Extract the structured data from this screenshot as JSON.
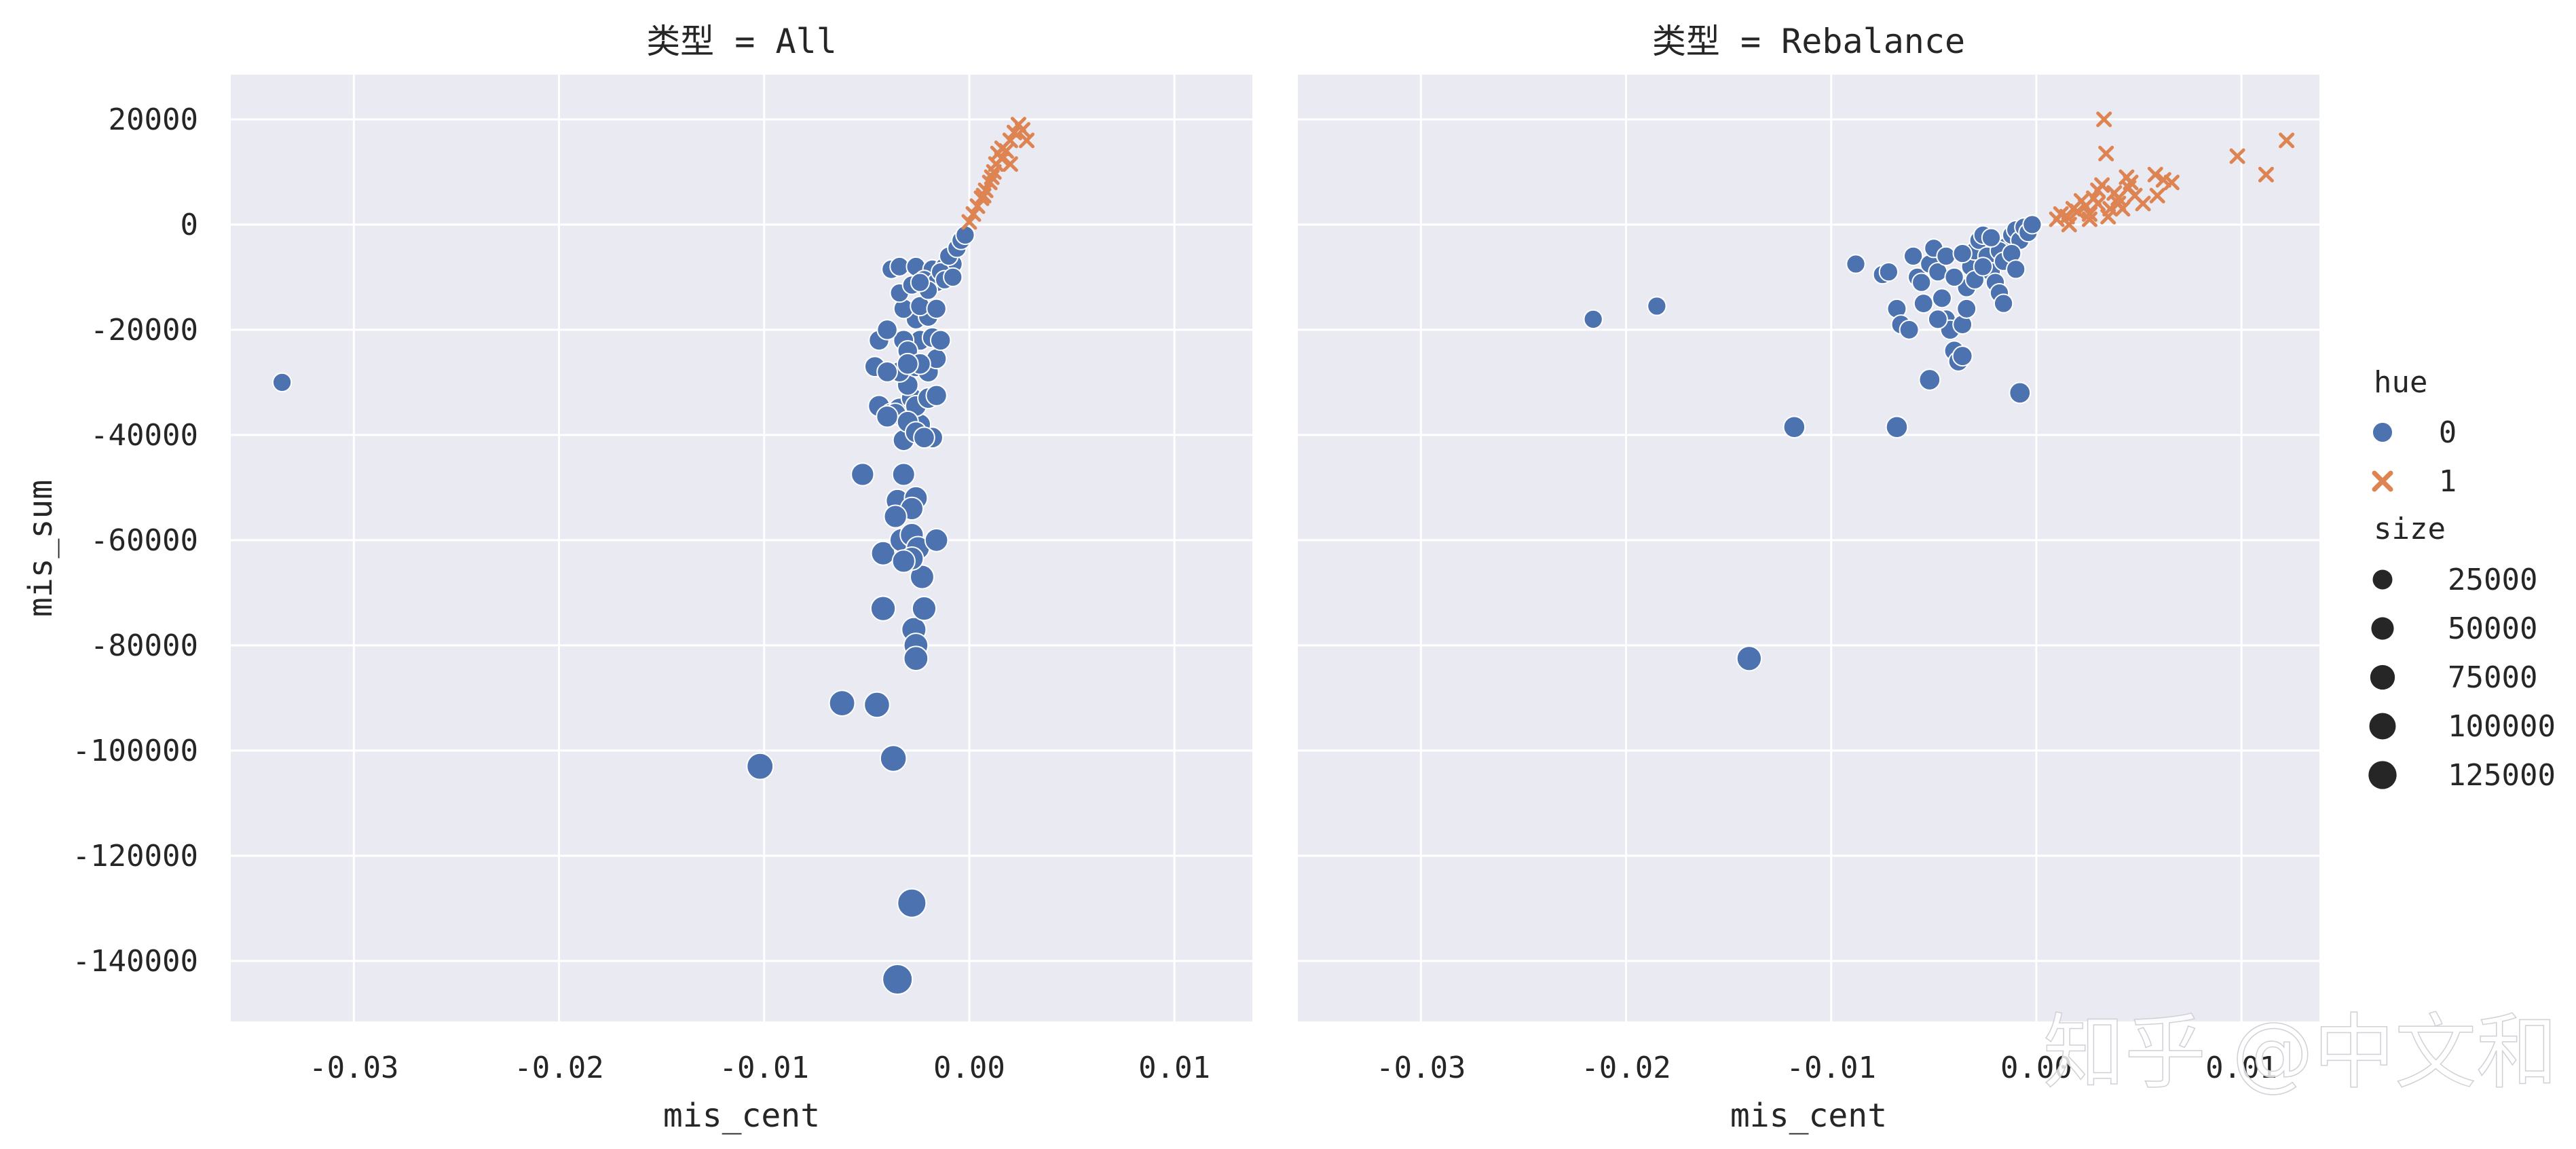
{
  "watermark": "知乎 @中文和",
  "colors": {
    "background": "#EAEAF2",
    "grid": "#FFFFFF",
    "hue0": "#4C72B0",
    "hue1": "#DD8452"
  },
  "chart_data": {
    "type": "scatter",
    "shared_axes": {
      "xlabel": "mis_cent",
      "ylabel": "mis_sum",
      "xlim": [
        -0.036,
        0.0138
      ],
      "ylim": [
        -151500,
        28500
      ],
      "xticks": [
        -0.03,
        -0.02,
        -0.01,
        0.0,
        0.01
      ],
      "xtick_labels": [
        "-0.03",
        "-0.02",
        "-0.01",
        "0.00",
        "0.01"
      ],
      "yticks": [
        20000,
        0,
        -20000,
        -40000,
        -60000,
        -80000,
        -100000,
        -120000,
        -140000
      ],
      "ytick_labels": [
        "20000",
        "0",
        "-20000",
        "-40000",
        "-60000",
        "-80000",
        "-100000",
        "-120000",
        "-140000"
      ],
      "grid": true
    },
    "facets": [
      {
        "title": "类型 = All",
        "hue0_points": [
          [
            -0.0335,
            -30000,
            12000
          ],
          [
            -0.0102,
            -103000,
            80000
          ],
          [
            -0.0062,
            -91000,
            72000
          ],
          [
            -0.0045,
            -91300,
            70000
          ],
          [
            -0.0037,
            -101500,
            78000
          ],
          [
            -0.0028,
            -129000,
            110000
          ],
          [
            -0.0035,
            -143500,
            130000
          ],
          [
            -0.0042,
            -73000,
            60000
          ],
          [
            -0.0027,
            -77000,
            58000
          ],
          [
            -0.0026,
            -80000,
            55000
          ],
          [
            -0.0026,
            -82500,
            56000
          ],
          [
            -0.0022,
            -73000,
            52000
          ],
          [
            -0.0023,
            -67000,
            50000
          ],
          [
            -0.0052,
            -47500,
            40000
          ],
          [
            -0.0032,
            -47500,
            38000
          ],
          [
            -0.0035,
            -52500,
            42000
          ],
          [
            -0.0026,
            -52000,
            44000
          ],
          [
            -0.0028,
            -54000,
            40000
          ],
          [
            -0.0036,
            -55500,
            40000
          ],
          [
            -0.0042,
            -62500,
            50000
          ],
          [
            -0.0033,
            -60000,
            48000
          ],
          [
            -0.0028,
            -59000,
            46000
          ],
          [
            -0.0025,
            -61500,
            45000
          ],
          [
            -0.0028,
            -63500,
            44000
          ],
          [
            -0.0016,
            -60000,
            42000
          ],
          [
            -0.0032,
            -64000,
            40000
          ],
          [
            -0.0044,
            -34500,
            30000
          ],
          [
            -0.0038,
            -36000,
            30000
          ],
          [
            -0.0032,
            -41000,
            28000
          ],
          [
            -0.0018,
            -40500,
            26000
          ],
          [
            -0.0024,
            -38000,
            28000
          ],
          [
            -0.0034,
            -35000,
            30000
          ],
          [
            -0.0028,
            -33000,
            28000
          ],
          [
            -0.0026,
            -34500,
            26000
          ],
          [
            -0.002,
            -33000,
            26000
          ],
          [
            -0.0016,
            -32500,
            24000
          ],
          [
            -0.003,
            -30500,
            26000
          ],
          [
            -0.0034,
            -28000,
            24000
          ],
          [
            -0.0026,
            -27000,
            24000
          ],
          [
            -0.002,
            -28000,
            24000
          ],
          [
            -0.0046,
            -27000,
            22000
          ],
          [
            -0.004,
            -28000,
            22000
          ],
          [
            -0.0024,
            -22000,
            22000
          ],
          [
            -0.0018,
            -21500,
            20000
          ],
          [
            -0.0032,
            -22000,
            22000
          ],
          [
            -0.0044,
            -22000,
            20000
          ],
          [
            -0.004,
            -20000,
            20000
          ],
          [
            -0.0016,
            -25500,
            20000
          ],
          [
            -0.003,
            -24000,
            20000
          ],
          [
            -0.0026,
            -18000,
            18000
          ],
          [
            -0.002,
            -17500,
            18000
          ],
          [
            -0.0032,
            -16000,
            18000
          ],
          [
            -0.0024,
            -15500,
            16000
          ],
          [
            -0.0016,
            -16000,
            16000
          ],
          [
            -0.0038,
            -8500,
            14000
          ],
          [
            -0.0034,
            -8000,
            14000
          ],
          [
            -0.0026,
            -8000,
            14000
          ],
          [
            -0.0018,
            -8500,
            14000
          ],
          [
            -0.0012,
            -8000,
            14000
          ],
          [
            -0.0008,
            -7500,
            14000
          ],
          [
            -0.0022,
            -10500,
            14000
          ],
          [
            -0.0016,
            -11000,
            14000
          ],
          [
            -0.0014,
            -9000,
            12000
          ],
          [
            -0.001,
            -6000,
            12000
          ],
          [
            -0.0006,
            -4500,
            12000
          ],
          [
            -0.0004,
            -3000,
            12000
          ],
          [
            -0.0002,
            -2000,
            12000
          ],
          [
            -0.002,
            -12500,
            12000
          ],
          [
            -0.0034,
            -13000,
            12000
          ],
          [
            -0.0028,
            -11500,
            12000
          ],
          [
            -0.0024,
            -11000,
            12000
          ],
          [
            -0.0012,
            -10500,
            12000
          ],
          [
            -0.0008,
            -10000,
            12000
          ],
          [
            -0.0036,
            -36000,
            30000
          ],
          [
            -0.004,
            -36500,
            30000
          ],
          [
            -0.003,
            -37500,
            28000
          ],
          [
            -0.0026,
            -39500,
            28000
          ],
          [
            -0.0022,
            -40500,
            26000
          ],
          [
            -0.0024,
            -26500,
            26000
          ],
          [
            -0.003,
            -26500,
            26000
          ],
          [
            -0.0014,
            -22000,
            20000
          ]
        ],
        "hue1_points": [
          [
            0.0,
            500,
            6000
          ],
          [
            0.0002,
            2000,
            6000
          ],
          [
            0.0004,
            3500,
            6000
          ],
          [
            0.0006,
            5000,
            6000
          ],
          [
            0.0008,
            6500,
            6000
          ],
          [
            0.001,
            8000,
            6000
          ],
          [
            0.0012,
            10000,
            6000
          ],
          [
            0.0013,
            11500,
            6000
          ],
          [
            0.0014,
            13500,
            6000
          ],
          [
            0.0016,
            12500,
            6000
          ],
          [
            0.0018,
            14000,
            6000
          ],
          [
            0.002,
            16000,
            6000
          ],
          [
            0.0022,
            17500,
            6000
          ],
          [
            0.0024,
            19000,
            6000
          ],
          [
            0.0026,
            18000,
            6000
          ],
          [
            0.0028,
            16000,
            6000
          ],
          [
            0.002,
            11500,
            6000
          ],
          [
            0.0016,
            14500,
            6000
          ],
          [
            0.0011,
            9000,
            6000
          ],
          [
            0.0007,
            5500,
            6000
          ]
        ]
      },
      {
        "title": "类型 = Rebalance",
        "hue0_points": [
          [
            -0.0216,
            -18000,
            12000
          ],
          [
            -0.0185,
            -15500,
            12000
          ],
          [
            -0.0118,
            -38500,
            30000
          ],
          [
            -0.014,
            -82500,
            60000
          ],
          [
            -0.0068,
            -38500,
            30000
          ],
          [
            -0.0052,
            -29500,
            26000
          ],
          [
            -0.0008,
            -32000,
            26000
          ],
          [
            -0.0088,
            -7500,
            12000
          ],
          [
            -0.0075,
            -9500,
            12000
          ],
          [
            -0.0072,
            -9000,
            12000
          ],
          [
            -0.0068,
            -16000,
            14000
          ],
          [
            -0.0066,
            -19000,
            14000
          ],
          [
            -0.0062,
            -20000,
            14000
          ],
          [
            -0.006,
            -6000,
            12000
          ],
          [
            -0.0058,
            -10000,
            12000
          ],
          [
            -0.0055,
            -15000,
            14000
          ],
          [
            -0.0052,
            -7500,
            12000
          ],
          [
            -0.005,
            -4500,
            12000
          ],
          [
            -0.0048,
            -9000,
            12000
          ],
          [
            -0.0046,
            -14000,
            14000
          ],
          [
            -0.0044,
            -18000,
            14000
          ],
          [
            -0.0042,
            -20000,
            16000
          ],
          [
            -0.004,
            -24000,
            18000
          ],
          [
            -0.0038,
            -26000,
            18000
          ],
          [
            -0.0036,
            -25000,
            18000
          ],
          [
            -0.0036,
            -19000,
            14000
          ],
          [
            -0.0034,
            -16000,
            14000
          ],
          [
            -0.0034,
            -12000,
            12000
          ],
          [
            -0.0032,
            -8000,
            12000
          ],
          [
            -0.003,
            -5000,
            12000
          ],
          [
            -0.0028,
            -3000,
            12000
          ],
          [
            -0.0026,
            -2000,
            12000
          ],
          [
            -0.0024,
            -6000,
            12000
          ],
          [
            -0.0022,
            -9000,
            12000
          ],
          [
            -0.002,
            -11000,
            12000
          ],
          [
            -0.0018,
            -13000,
            12000
          ],
          [
            -0.0016,
            -15000,
            12000
          ],
          [
            -0.0014,
            -4000,
            12000
          ],
          [
            -0.0012,
            -2000,
            12000
          ],
          [
            -0.001,
            -1000,
            12000
          ],
          [
            -0.0008,
            -3000,
            12000
          ],
          [
            -0.0006,
            -500,
            12000
          ],
          [
            -0.0004,
            -1500,
            12000
          ],
          [
            -0.0002,
            0,
            12000
          ],
          [
            -0.004,
            -10000,
            12000
          ],
          [
            -0.0044,
            -6000,
            12000
          ],
          [
            -0.003,
            -10500,
            12000
          ],
          [
            -0.0026,
            -8000,
            12000
          ],
          [
            -0.0018,
            -5000,
            12000
          ],
          [
            -0.0022,
            -2500,
            12000
          ],
          [
            -0.0016,
            -7000,
            12000
          ],
          [
            -0.0012,
            -5500,
            12000
          ],
          [
            -0.001,
            -8500,
            12000
          ],
          [
            -0.0036,
            -5500,
            12000
          ],
          [
            -0.0048,
            -18000,
            14000
          ],
          [
            -0.0056,
            -11000,
            12000
          ]
        ],
        "hue1_points": [
          [
            0.001,
            1000,
            6000
          ],
          [
            0.0012,
            2000,
            6000
          ],
          [
            0.0015,
            1500,
            6000
          ],
          [
            0.0018,
            3000,
            6000
          ],
          [
            0.002,
            2500,
            6000
          ],
          [
            0.0022,
            4500,
            6000
          ],
          [
            0.0024,
            3500,
            6000
          ],
          [
            0.0026,
            2000,
            6000
          ],
          [
            0.0028,
            5000,
            6000
          ],
          [
            0.003,
            4000,
            6000
          ],
          [
            0.0032,
            7500,
            6000
          ],
          [
            0.0033,
            20000,
            6000
          ],
          [
            0.0034,
            13500,
            6000
          ],
          [
            0.0035,
            1500,
            6000
          ],
          [
            0.0036,
            3000,
            6000
          ],
          [
            0.0038,
            6000,
            6000
          ],
          [
            0.004,
            4000,
            6000
          ],
          [
            0.0042,
            3000,
            6000
          ],
          [
            0.0044,
            9000,
            6000
          ],
          [
            0.0046,
            8000,
            6000
          ],
          [
            0.0048,
            5500,
            6000
          ],
          [
            0.0052,
            4000,
            6000
          ],
          [
            0.0058,
            9500,
            6000
          ],
          [
            0.0059,
            5500,
            6000
          ],
          [
            0.0062,
            8500,
            6000
          ],
          [
            0.0066,
            8000,
            6000
          ],
          [
            0.0098,
            13000,
            6000
          ],
          [
            0.0112,
            9500,
            6000
          ],
          [
            0.0122,
            16000,
            6000
          ],
          [
            0.0026,
            1000,
            6000
          ],
          [
            0.0016,
            0,
            6000
          ],
          [
            0.003,
            6500,
            6000
          ],
          [
            0.004,
            5000,
            6000
          ],
          [
            0.0045,
            7000,
            6000
          ]
        ]
      }
    ],
    "legend": {
      "placement": "right",
      "hue_title": "hue",
      "hue_entries": [
        "0",
        "1"
      ],
      "size_title": "size",
      "size_entries": [
        "25000",
        "50000",
        "75000",
        "100000",
        "125000"
      ],
      "size_values": [
        25000,
        50000,
        75000,
        100000,
        125000
      ]
    }
  }
}
